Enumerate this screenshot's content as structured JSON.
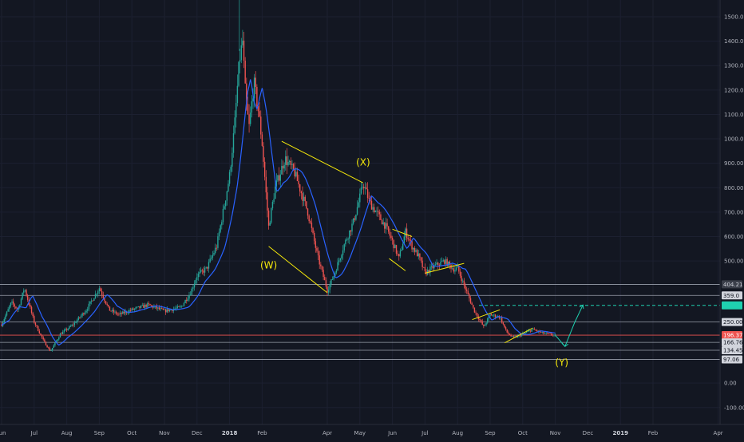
{
  "chart_data": {
    "type": "candlestick",
    "price_axis": {
      "ticks": [
        "1500.00",
        "1400.00",
        "1300.00",
        "1200.00",
        "1100.00",
        "1000.00",
        "900.00",
        "800.00",
        "700.00",
        "600.00",
        "500.00",
        "0.00",
        "-100.00"
      ],
      "range": [
        -130,
        1555
      ]
    },
    "time_axis": {
      "labels": [
        {
          "text": "Jun",
          "month": 0,
          "bold": false
        },
        {
          "text": "Jul",
          "month": 1,
          "bold": false
        },
        {
          "text": "Aug",
          "month": 2,
          "bold": false
        },
        {
          "text": "Sep",
          "month": 3,
          "bold": false
        },
        {
          "text": "Oct",
          "month": 4,
          "bold": false
        },
        {
          "text": "Nov",
          "month": 5,
          "bold": false
        },
        {
          "text": "Dec",
          "month": 6,
          "bold": false
        },
        {
          "text": "2018",
          "month": 7,
          "bold": true
        },
        {
          "text": "Feb",
          "month": 8,
          "bold": false
        },
        {
          "text": "Apr",
          "month": 10,
          "bold": false
        },
        {
          "text": "May",
          "month": 11,
          "bold": false
        },
        {
          "text": "Jun",
          "month": 12,
          "bold": false
        },
        {
          "text": "Jul",
          "month": 13,
          "bold": false
        },
        {
          "text": "Aug",
          "month": 14,
          "bold": false
        },
        {
          "text": "Sep",
          "month": 15,
          "bold": false
        },
        {
          "text": "Oct",
          "month": 16,
          "bold": false
        },
        {
          "text": "Nov",
          "month": 17,
          "bold": false
        },
        {
          "text": "Dec",
          "month": 18,
          "bold": false
        },
        {
          "text": "2019",
          "month": 19,
          "bold": true
        },
        {
          "text": "Feb",
          "month": 20,
          "bold": false
        },
        {
          "text": "Apr",
          "month": 22,
          "bold": false
        }
      ]
    },
    "horizontal_levels": [
      {
        "label": "404.21",
        "price": 404.21,
        "style": "solid",
        "color": "#9aa0ab",
        "badge": "#3b3f4a",
        "badge_text": "#d1d4dc"
      },
      {
        "label": "359.0",
        "price": 359.0,
        "style": "solid",
        "color": "#9aa0ab",
        "badge": "#d1d4dc",
        "badge_text": "#131722"
      },
      {
        "label": "",
        "price": 318,
        "style": "dashed",
        "color": "#1fd1b0",
        "badge": "#1fd1b0",
        "badge_text": "#131722"
      },
      {
        "label": "250.00",
        "price": 250.0,
        "style": "solid",
        "color": "#9aa0ab",
        "badge": "#d1d4dc",
        "badge_text": "#131722"
      },
      {
        "label": "196.37",
        "price": 196.37,
        "style": "solid",
        "color": "#ef5350",
        "badge": "#ef5350",
        "badge_text": "#ffffff"
      },
      {
        "label": "166.76",
        "price": 166.76,
        "style": "solid",
        "color": "#9aa0ab",
        "badge": "#d1d4dc",
        "badge_text": "#131722"
      },
      {
        "label": "134.45",
        "price": 134.45,
        "style": "solid",
        "color": "#9aa0ab",
        "badge": "#d1d4dc",
        "badge_text": "#131722"
      },
      {
        "label": "97.06",
        "price": 97.06,
        "style": "solid",
        "color": "#9aa0ab",
        "badge": "#d1d4dc",
        "badge_text": "#131722"
      }
    ],
    "price_path": [
      [
        0.0,
        240
      ],
      [
        0.3,
        330
      ],
      [
        0.5,
        300
      ],
      [
        0.7,
        390
      ],
      [
        1.0,
        250
      ],
      [
        1.3,
        170
      ],
      [
        1.5,
        130
      ],
      [
        1.8,
        200
      ],
      [
        2.2,
        240
      ],
      [
        2.6,
        300
      ],
      [
        3.0,
        390
      ],
      [
        3.3,
        300
      ],
      [
        3.6,
        280
      ],
      [
        4.0,
        300
      ],
      [
        4.5,
        320
      ],
      [
        5.0,
        295
      ],
      [
        5.5,
        310
      ],
      [
        5.8,
        370
      ],
      [
        6.0,
        440
      ],
      [
        6.3,
        470
      ],
      [
        6.6,
        560
      ],
      [
        6.8,
        700
      ],
      [
        7.0,
        850
      ],
      [
        7.15,
        1050
      ],
      [
        7.3,
        1320
      ],
      [
        7.4,
        1400
      ],
      [
        7.5,
        1150
      ],
      [
        7.6,
        1050
      ],
      [
        7.75,
        1230
      ],
      [
        7.9,
        1100
      ],
      [
        8.0,
        980
      ],
      [
        8.2,
        640
      ],
      [
        8.4,
        800
      ],
      [
        8.7,
        920
      ],
      [
        9.0,
        860
      ],
      [
        9.4,
        700
      ],
      [
        9.7,
        520
      ],
      [
        10.0,
        380
      ],
      [
        10.2,
        440
      ],
      [
        10.5,
        560
      ],
      [
        10.8,
        660
      ],
      [
        11.0,
        760
      ],
      [
        11.1,
        820
      ],
      [
        11.3,
        740
      ],
      [
        11.5,
        700
      ],
      [
        11.8,
        640
      ],
      [
        12.0,
        580
      ],
      [
        12.2,
        510
      ],
      [
        12.4,
        620
      ],
      [
        12.6,
        560
      ],
      [
        12.8,
        520
      ],
      [
        13.0,
        450
      ],
      [
        13.3,
        480
      ],
      [
        13.6,
        500
      ],
      [
        13.9,
        465
      ],
      [
        14.0,
        470
      ],
      [
        14.2,
        400
      ],
      [
        14.5,
        300
      ],
      [
        14.8,
        230
      ],
      [
        15.0,
        280
      ],
      [
        15.3,
        270
      ],
      [
        15.5,
        210
      ],
      [
        15.7,
        185
      ],
      [
        16.0,
        200
      ],
      [
        16.3,
        220
      ],
      [
        16.6,
        205
      ],
      [
        17.0,
        196
      ]
    ],
    "projection": [
      [
        17.0,
        196
      ],
      [
        17.3,
        150
      ],
      [
        17.6,
        250
      ],
      [
        17.85,
        320
      ]
    ],
    "annotations": {
      "labels": [
        {
          "text": "(W)",
          "month": 8.2,
          "price": 470
        },
        {
          "text": "(X)",
          "month": 11.1,
          "price": 890
        },
        {
          "text": "(Y)",
          "month": 17.2,
          "price": 70
        }
      ],
      "trendlines": [
        {
          "from": [
            8.6,
            990
          ],
          "to": [
            11.1,
            820
          ]
        },
        {
          "from": [
            8.2,
            560
          ],
          "to": [
            10.0,
            370
          ]
        },
        {
          "from": [
            12.0,
            630
          ],
          "to": [
            12.6,
            600
          ]
        },
        {
          "from": [
            11.9,
            510
          ],
          "to": [
            12.4,
            460
          ]
        },
        {
          "from": [
            13.0,
            450
          ],
          "to": [
            14.2,
            490
          ]
        },
        {
          "from": [
            14.45,
            260
          ],
          "to": [
            15.3,
            300
          ]
        },
        {
          "from": [
            15.45,
            165
          ],
          "to": [
            16.3,
            225
          ]
        }
      ]
    }
  }
}
